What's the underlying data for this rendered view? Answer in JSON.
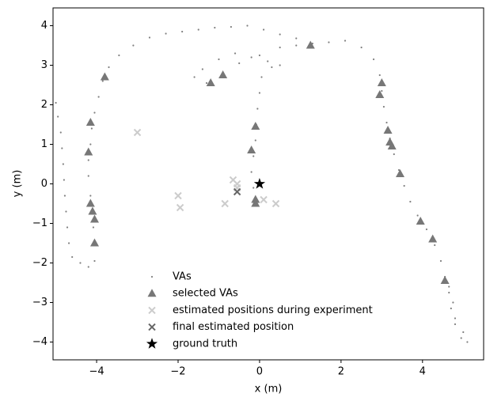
{
  "chart_data": {
    "type": "scatter",
    "xlabel": "x (m)",
    "ylabel": "y (m)",
    "xlim": [
      -5.07,
      5.5
    ],
    "ylim": [
      -4.45,
      4.45
    ],
    "xticks": [
      {
        "value": -4,
        "label": "−4"
      },
      {
        "value": -2,
        "label": "−2"
      },
      0,
      2,
      4
    ],
    "yticks": [
      {
        "value": -4,
        "label": "−4"
      },
      {
        "value": -3,
        "label": "−3"
      },
      {
        "value": -2,
        "label": "−2"
      },
      {
        "value": -1,
        "label": "−1"
      },
      0,
      1,
      2,
      3,
      4
    ],
    "legend": "lower left",
    "series": [
      {
        "name": "VAs",
        "color": "#808080",
        "marker": "dot",
        "x": [
          -5.0,
          -4.95,
          -4.88,
          -4.85,
          -4.82,
          -4.8,
          -4.78,
          -4.75,
          -4.72,
          -4.68,
          -4.6,
          -4.4,
          -4.2,
          -4.05,
          -4.05,
          -4.08,
          -4.12,
          -4.15,
          -4.2,
          -4.2,
          -4.15,
          -4.12,
          -4.05,
          -3.95,
          -3.85,
          -3.7,
          -3.45,
          -3.1,
          -2.7,
          -2.3,
          -1.9,
          -1.5,
          -1.1,
          -0.7,
          -0.3,
          0.1,
          0.5,
          0.9,
          1.3,
          1.7,
          2.1,
          2.5,
          2.8,
          2.95,
          3.0,
          3.05,
          3.12,
          3.2,
          3.3,
          3.42,
          3.55,
          3.7,
          3.88,
          4.1,
          4.3,
          4.45,
          4.55,
          4.65,
          4.7,
          4.8,
          4.95,
          5.1,
          5.0,
          4.8,
          4.75,
          4.65,
          -0.1,
          -0.15,
          -0.2,
          -0.15,
          -0.1,
          -0.08,
          -0.05,
          0.0,
          0.05,
          0.3,
          0.5,
          0.2,
          -0.2,
          -0.6,
          -1.0,
          -1.4,
          -1.6,
          -1.3,
          -0.9,
          -0.5,
          0.0,
          0.5,
          0.9,
          1.25
        ],
        "values": [
          2.05,
          1.7,
          1.3,
          0.9,
          0.5,
          0.1,
          -0.3,
          -0.7,
          -1.1,
          -1.5,
          -1.85,
          -2.0,
          -2.1,
          -1.95,
          -1.5,
          -1.1,
          -0.7,
          -0.3,
          0.2,
          0.6,
          1.0,
          1.4,
          1.8,
          2.2,
          2.6,
          2.95,
          3.25,
          3.5,
          3.7,
          3.8,
          3.85,
          3.9,
          3.95,
          3.97,
          4.0,
          3.9,
          3.78,
          3.68,
          3.55,
          3.58,
          3.62,
          3.45,
          3.15,
          2.75,
          2.35,
          1.95,
          1.55,
          1.15,
          0.75,
          0.35,
          -0.05,
          -0.45,
          -0.8,
          -1.15,
          -1.55,
          -1.95,
          -2.35,
          -2.75,
          -3.15,
          -3.55,
          -3.9,
          -4.0,
          -3.75,
          -3.4,
          -3.0,
          -2.6,
          -0.5,
          -0.1,
          0.3,
          0.7,
          1.1,
          1.5,
          1.9,
          2.3,
          2.7,
          2.95,
          3.0,
          3.1,
          3.2,
          3.3,
          3.15,
          2.9,
          2.7,
          2.55,
          2.8,
          3.05,
          3.25,
          3.45,
          3.5,
          3.5
        ]
      },
      {
        "name": "selected VAs",
        "color": "#777777",
        "marker": "triangle",
        "x": [
          1.25,
          -3.8,
          -1.2,
          -0.9,
          3.0,
          2.95,
          -4.15,
          -0.1,
          3.15,
          -0.2,
          -4.2,
          3.2,
          3.25,
          3.45,
          -4.15,
          -4.1,
          -4.05,
          -0.1,
          -0.1,
          3.95,
          4.25,
          -4.05,
          4.55
        ],
        "values": [
          3.5,
          2.7,
          2.55,
          2.75,
          2.55,
          2.25,
          1.55,
          1.45,
          1.35,
          0.85,
          0.8,
          1.05,
          0.95,
          0.25,
          -0.5,
          -0.7,
          -0.9,
          -0.4,
          -0.5,
          -0.95,
          -1.4,
          -1.5,
          -2.45
        ]
      },
      {
        "name": "estimated positions during experiment",
        "color": "#cccccc",
        "marker": "x",
        "x": [
          -3.0,
          -2.0,
          -1.95,
          -0.65,
          -0.55,
          -0.55,
          -0.85,
          0.1,
          0.4
        ],
        "values": [
          1.3,
          -0.3,
          -0.6,
          0.1,
          0.0,
          -0.1,
          -0.5,
          -0.4,
          -0.5
        ]
      },
      {
        "name": "final estimated position",
        "color": "#666666",
        "marker": "x",
        "x": [
          -0.55
        ],
        "values": [
          -0.2
        ]
      },
      {
        "name": "ground truth",
        "color": "#000000",
        "marker": "star",
        "x": [
          0
        ],
        "values": [
          0
        ]
      }
    ]
  }
}
